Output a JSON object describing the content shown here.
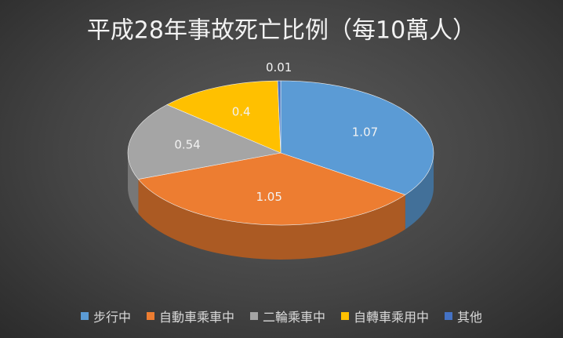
{
  "chart_data": {
    "type": "pie3d",
    "title": "平成28年事故死亡比例（每10萬人）",
    "categories": [
      "步行中",
      "自動車乘車中",
      "二輪乘車中",
      "自轉車乘用中",
      "其他"
    ],
    "values": [
      1.07,
      1.05,
      0.54,
      0.4,
      0.01
    ],
    "colors": [
      "#5b9bd5",
      "#ed7d31",
      "#a5a5a5",
      "#ffc000",
      "#4472c4"
    ],
    "legend": "bottom"
  }
}
